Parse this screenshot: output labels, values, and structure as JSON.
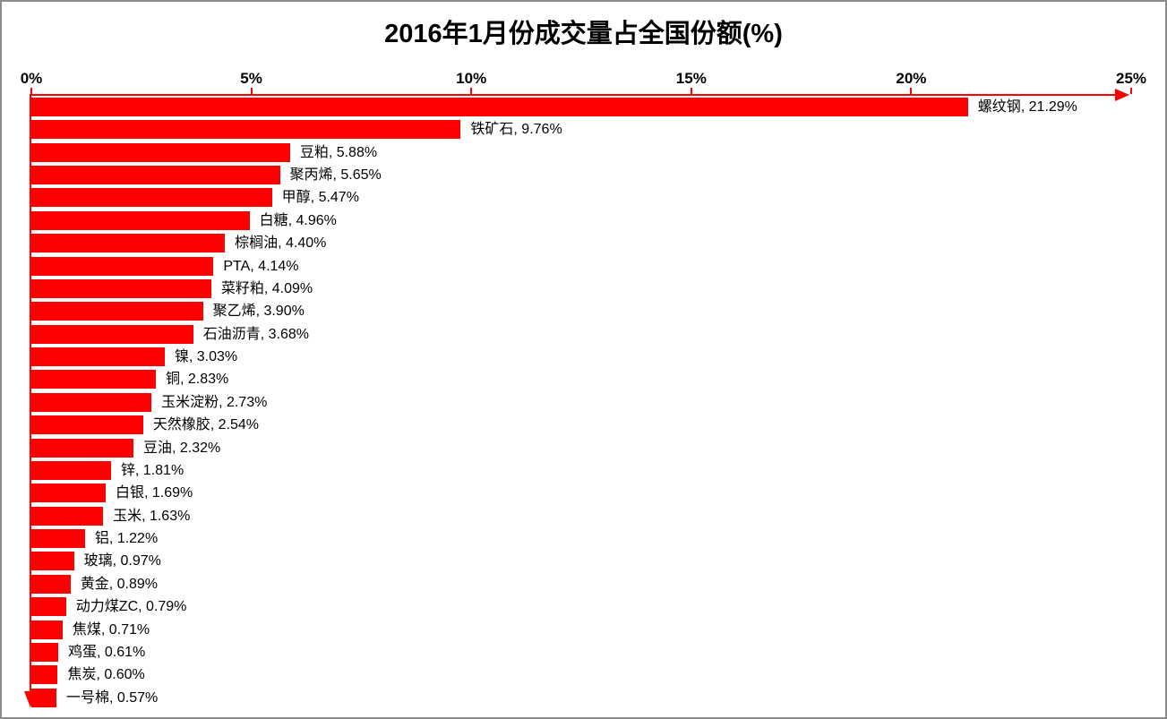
{
  "title": "2016年1月份成交量占全国份额(%)",
  "colors": {
    "bar": "#ff0000",
    "axis": "#ff0000",
    "text": "#000000",
    "frame_border": "#8c8c8c",
    "background": "#ffffff"
  },
  "chart_data": {
    "type": "bar",
    "orientation": "horizontal",
    "title": "2016年1月份成交量占全国份额(%)",
    "xlabel": "",
    "ylabel": "",
    "xlim": [
      0,
      25
    ],
    "axis_position": "top",
    "grid": false,
    "legend": false,
    "x_tick_values": [
      0,
      5,
      10,
      15,
      20,
      25
    ],
    "x_tick_labels": [
      "0%",
      "5%",
      "10%",
      "15%",
      "20%",
      "25%"
    ],
    "label_format": "{category}, {value}%",
    "categories": [
      "螺纹钢",
      "铁矿石",
      "豆粕",
      "聚丙烯",
      "甲醇",
      "白糖",
      "棕榈油",
      "PTA",
      "菜籽粕",
      "聚乙烯",
      "石油沥青",
      "镍",
      "铜",
      "玉米淀粉",
      "天然橡胶",
      "豆油",
      "锌",
      "白银",
      "玉米",
      "铝",
      "玻璃",
      "黄金",
      "动力煤ZC",
      "焦煤",
      "鸡蛋",
      "焦炭",
      "一号棉"
    ],
    "values": [
      21.29,
      9.76,
      5.88,
      5.65,
      5.47,
      4.96,
      4.4,
      4.14,
      4.09,
      3.9,
      3.68,
      3.03,
      2.83,
      2.73,
      2.54,
      2.32,
      1.81,
      1.69,
      1.63,
      1.22,
      0.97,
      0.89,
      0.79,
      0.71,
      0.61,
      0.6,
      0.57
    ],
    "data_labels": [
      "螺纹钢, 21.29%",
      "铁矿石, 9.76%",
      "豆粕, 5.88%",
      "聚丙烯, 5.65%",
      "甲醇, 5.47%",
      "白糖, 4.96%",
      "棕榈油, 4.40%",
      "PTA, 4.14%",
      "菜籽粕, 4.09%",
      "聚乙烯, 3.90%",
      "石油沥青, 3.68%",
      "镍, 3.03%",
      "铜, 2.83%",
      "玉米淀粉, 2.73%",
      "天然橡胶, 2.54%",
      "豆油, 2.32%",
      "锌, 1.81%",
      "白银, 1.69%",
      "玉米, 1.63%",
      "铝, 1.22%",
      "玻璃, 0.97%",
      "黄金, 0.89%",
      "动力煤ZC, 0.79%",
      "焦煤, 0.71%",
      "鸡蛋, 0.61%",
      "焦炭, 0.60%",
      "一号棉, 0.57%"
    ]
  }
}
